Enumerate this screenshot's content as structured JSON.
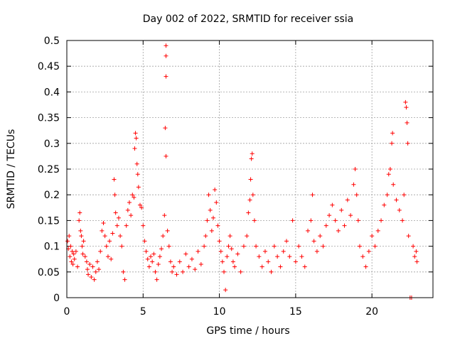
{
  "chart_data": {
    "type": "scatter",
    "title": "Day 002 of 2022, SRMTID for receiver ssia",
    "xlabel": "GPS time / hours",
    "ylabel": "SRMTID / TECUs",
    "xlim": [
      0,
      24
    ],
    "ylim": [
      0,
      0.5
    ],
    "xticks": [
      0,
      5,
      10,
      15,
      20
    ],
    "xtick_labels": [
      "0",
      "5",
      "10",
      "15",
      "20"
    ],
    "yticks": [
      0,
      0.05,
      0.1,
      0.15,
      0.2,
      0.25,
      0.3,
      0.35,
      0.4,
      0.45,
      0.5
    ],
    "ytick_labels": [
      "0",
      "0.05",
      "0.1",
      "0.15",
      "0.2",
      "0.25",
      "0.3",
      "0.35",
      "0.4",
      "0.45",
      "0.5"
    ],
    "grid": true,
    "marker": "+",
    "color": "#ff0000",
    "series": [
      {
        "name": "SRMTID",
        "points": [
          [
            0.05,
            0.11
          ],
          [
            0.1,
            0.095
          ],
          [
            0.15,
            0.12
          ],
          [
            0.2,
            0.08
          ],
          [
            0.25,
            0.1
          ],
          [
            0.3,
            0.07
          ],
          [
            0.35,
            0.09
          ],
          [
            0.4,
            0.065
          ],
          [
            0.45,
            0.085
          ],
          [
            0.5,
            0.075
          ],
          [
            0.6,
            0.09
          ],
          [
            0.7,
            0.06
          ],
          [
            0.8,
            0.15
          ],
          [
            0.85,
            0.165
          ],
          [
            0.9,
            0.13
          ],
          [
            0.95,
            0.12
          ],
          [
            1.0,
            0.1
          ],
          [
            1.05,
            0.085
          ],
          [
            1.1,
            0.11
          ],
          [
            1.2,
            0.08
          ],
          [
            1.3,
            0.07
          ],
          [
            1.35,
            0.055
          ],
          [
            1.4,
            0.045
          ],
          [
            1.5,
            0.065
          ],
          [
            1.6,
            0.04
          ],
          [
            1.7,
            0.06
          ],
          [
            1.8,
            0.035
          ],
          [
            1.9,
            0.05
          ],
          [
            2.0,
            0.07
          ],
          [
            2.1,
            0.055
          ],
          [
            2.2,
            0.09
          ],
          [
            2.3,
            0.13
          ],
          [
            2.4,
            0.145
          ],
          [
            2.5,
            0.12
          ],
          [
            2.6,
            0.1
          ],
          [
            2.7,
            0.08
          ],
          [
            2.8,
            0.11
          ],
          [
            2.9,
            0.075
          ],
          [
            3.0,
            0.125
          ],
          [
            3.1,
            0.23
          ],
          [
            3.15,
            0.2
          ],
          [
            3.2,
            0.165
          ],
          [
            3.3,
            0.14
          ],
          [
            3.4,
            0.155
          ],
          [
            3.5,
            0.12
          ],
          [
            3.6,
            0.1
          ],
          [
            3.7,
            0.05
          ],
          [
            3.8,
            0.035
          ],
          [
            3.9,
            0.14
          ],
          [
            4.0,
            0.17
          ],
          [
            4.1,
            0.185
          ],
          [
            4.2,
            0.16
          ],
          [
            4.3,
            0.2
          ],
          [
            4.4,
            0.195
          ],
          [
            4.45,
            0.29
          ],
          [
            4.5,
            0.32
          ],
          [
            4.55,
            0.31
          ],
          [
            4.6,
            0.26
          ],
          [
            4.65,
            0.24
          ],
          [
            4.7,
            0.215
          ],
          [
            4.8,
            0.18
          ],
          [
            4.9,
            0.175
          ],
          [
            5.0,
            0.14
          ],
          [
            5.1,
            0.11
          ],
          [
            5.2,
            0.09
          ],
          [
            5.3,
            0.075
          ],
          [
            5.4,
            0.06
          ],
          [
            5.5,
            0.08
          ],
          [
            5.6,
            0.07
          ],
          [
            5.7,
            0.085
          ],
          [
            5.8,
            0.05
          ],
          [
            5.9,
            0.035
          ],
          [
            6.0,
            0.065
          ],
          [
            6.1,
            0.08
          ],
          [
            6.2,
            0.095
          ],
          [
            6.3,
            0.12
          ],
          [
            6.4,
            0.16
          ],
          [
            6.45,
            0.33
          ],
          [
            6.5,
            0.43
          ],
          [
            6.5,
            0.49
          ],
          [
            6.5,
            0.47
          ],
          [
            6.5,
            0.275
          ],
          [
            6.6,
            0.13
          ],
          [
            6.7,
            0.1
          ],
          [
            6.8,
            0.07
          ],
          [
            6.9,
            0.05
          ],
          [
            7.0,
            0.06
          ],
          [
            7.2,
            0.045
          ],
          [
            7.4,
            0.07
          ],
          [
            7.6,
            0.05
          ],
          [
            7.8,
            0.085
          ],
          [
            8.0,
            0.06
          ],
          [
            8.2,
            0.075
          ],
          [
            8.4,
            0.055
          ],
          [
            8.6,
            0.09
          ],
          [
            8.8,
            0.065
          ],
          [
            9.0,
            0.1
          ],
          [
            9.1,
            0.12
          ],
          [
            9.2,
            0.15
          ],
          [
            9.3,
            0.2
          ],
          [
            9.4,
            0.17
          ],
          [
            9.5,
            0.13
          ],
          [
            9.6,
            0.155
          ],
          [
            9.7,
            0.21
          ],
          [
            9.8,
            0.185
          ],
          [
            9.9,
            0.14
          ],
          [
            10.0,
            0.11
          ],
          [
            10.1,
            0.09
          ],
          [
            10.2,
            0.07
          ],
          [
            10.3,
            0.05
          ],
          [
            10.4,
            0.015
          ],
          [
            10.5,
            0.08
          ],
          [
            10.6,
            0.1
          ],
          [
            10.7,
            0.12
          ],
          [
            10.8,
            0.095
          ],
          [
            10.9,
            0.07
          ],
          [
            11.0,
            0.06
          ],
          [
            11.2,
            0.085
          ],
          [
            11.4,
            0.05
          ],
          [
            11.6,
            0.1
          ],
          [
            11.8,
            0.12
          ],
          [
            11.9,
            0.165
          ],
          [
            12.0,
            0.19
          ],
          [
            12.05,
            0.23
          ],
          [
            12.1,
            0.27
          ],
          [
            12.15,
            0.28
          ],
          [
            12.2,
            0.2
          ],
          [
            12.3,
            0.15
          ],
          [
            12.4,
            0.1
          ],
          [
            12.6,
            0.08
          ],
          [
            12.8,
            0.06
          ],
          [
            13.0,
            0.09
          ],
          [
            13.2,
            0.07
          ],
          [
            13.4,
            0.05
          ],
          [
            13.6,
            0.1
          ],
          [
            13.8,
            0.08
          ],
          [
            14.0,
            0.06
          ],
          [
            14.2,
            0.09
          ],
          [
            14.4,
            0.11
          ],
          [
            14.6,
            0.08
          ],
          [
            14.8,
            0.15
          ],
          [
            15.0,
            0.07
          ],
          [
            15.2,
            0.1
          ],
          [
            15.4,
            0.08
          ],
          [
            15.6,
            0.06
          ],
          [
            15.8,
            0.13
          ],
          [
            16.0,
            0.15
          ],
          [
            16.1,
            0.2
          ],
          [
            16.2,
            0.11
          ],
          [
            16.4,
            0.09
          ],
          [
            16.6,
            0.12
          ],
          [
            16.8,
            0.1
          ],
          [
            17.0,
            0.14
          ],
          [
            17.2,
            0.16
          ],
          [
            17.4,
            0.18
          ],
          [
            17.6,
            0.15
          ],
          [
            17.8,
            0.13
          ],
          [
            18.0,
            0.17
          ],
          [
            18.2,
            0.14
          ],
          [
            18.4,
            0.19
          ],
          [
            18.6,
            0.16
          ],
          [
            18.8,
            0.22
          ],
          [
            18.9,
            0.25
          ],
          [
            19.0,
            0.2
          ],
          [
            19.1,
            0.15
          ],
          [
            19.2,
            0.1
          ],
          [
            19.4,
            0.08
          ],
          [
            19.6,
            0.06
          ],
          [
            19.8,
            0.09
          ],
          [
            20.0,
            0.12
          ],
          [
            20.2,
            0.1
          ],
          [
            20.4,
            0.13
          ],
          [
            20.6,
            0.15
          ],
          [
            20.8,
            0.18
          ],
          [
            21.0,
            0.2
          ],
          [
            21.1,
            0.24
          ],
          [
            21.2,
            0.25
          ],
          [
            21.3,
            0.3
          ],
          [
            21.35,
            0.32
          ],
          [
            21.4,
            0.22
          ],
          [
            21.6,
            0.19
          ],
          [
            21.8,
            0.17
          ],
          [
            22.0,
            0.15
          ],
          [
            22.1,
            0.2
          ],
          [
            22.2,
            0.38
          ],
          [
            22.25,
            0.37
          ],
          [
            22.3,
            0.34
          ],
          [
            22.35,
            0.3
          ],
          [
            22.4,
            0.12
          ],
          [
            22.5,
            0.0
          ],
          [
            22.6,
            0.0
          ],
          [
            22.7,
            0.1
          ],
          [
            22.8,
            0.08
          ],
          [
            22.9,
            0.09
          ],
          [
            22.95,
            0.07
          ]
        ]
      }
    ]
  }
}
